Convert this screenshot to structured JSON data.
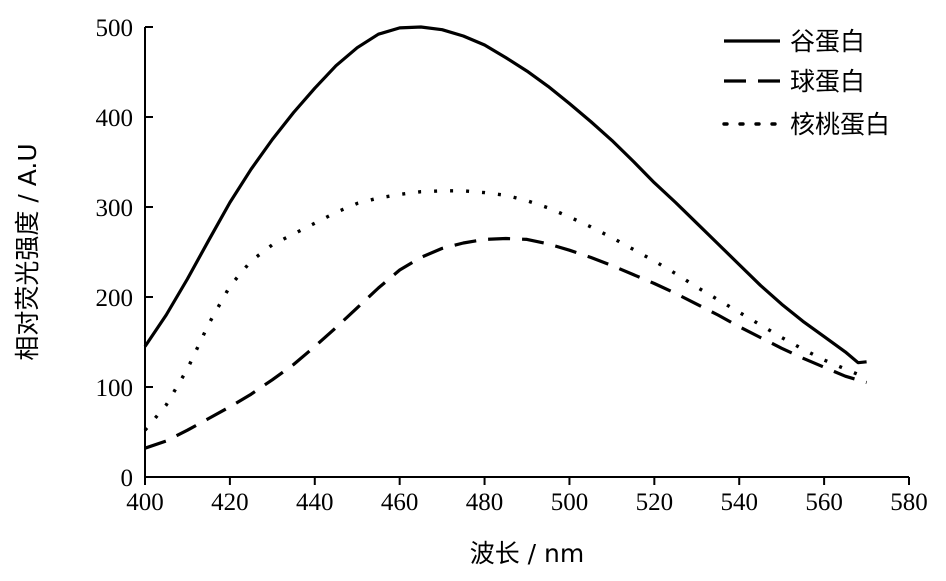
{
  "chart_data": {
    "type": "line",
    "title": "",
    "xlabel": "波长 / nm",
    "ylabel": "相对荧光强度 / A.U",
    "xlim": [
      400,
      580
    ],
    "ylim": [
      0,
      500
    ],
    "xticks": [
      400,
      420,
      440,
      460,
      480,
      500,
      520,
      540,
      560,
      580
    ],
    "yticks": [
      0,
      100,
      200,
      300,
      400,
      500
    ],
    "grid": false,
    "legend_position": "top-right",
    "series": [
      {
        "name": "谷蛋白",
        "line_style": "solid",
        "x": [
          400,
          405,
          410,
          415,
          420,
          425,
          430,
          435,
          440,
          445,
          450,
          455,
          460,
          465,
          470,
          475,
          480,
          485,
          490,
          495,
          500,
          505,
          510,
          515,
          520,
          525,
          530,
          535,
          540,
          545,
          550,
          555,
          560,
          565,
          568,
          570
        ],
        "y": [
          145,
          180,
          220,
          263,
          305,
          342,
          375,
          405,
          432,
          457,
          477,
          492,
          499,
          500,
          497,
          490,
          480,
          466,
          451,
          434,
          415,
          395,
          374,
          351,
          327,
          305,
          282,
          259,
          236,
          213,
          192,
          173,
          156,
          139,
          127,
          128
        ]
      },
      {
        "name": "球蛋白",
        "line_style": "dashed",
        "x": [
          400,
          405,
          410,
          415,
          420,
          425,
          430,
          435,
          440,
          445,
          450,
          455,
          460,
          465,
          470,
          475,
          480,
          485,
          490,
          495,
          500,
          505,
          510,
          515,
          520,
          525,
          530,
          535,
          540,
          545,
          550,
          555,
          560,
          565,
          570
        ],
        "y": [
          32,
          40,
          52,
          65,
          78,
          92,
          108,
          125,
          145,
          166,
          188,
          210,
          230,
          244,
          254,
          260,
          264,
          265,
          264,
          259,
          252,
          244,
          235,
          225,
          215,
          204,
          192,
          180,
          167,
          155,
          143,
          132,
          122,
          112,
          105
        ]
      },
      {
        "name": "核桃蛋白",
        "line_style": "dotted",
        "x": [
          400,
          405,
          410,
          415,
          420,
          425,
          430,
          435,
          440,
          445,
          450,
          455,
          460,
          465,
          470,
          475,
          480,
          485,
          490,
          495,
          500,
          505,
          510,
          515,
          520,
          525,
          530,
          535,
          540,
          545,
          550,
          555,
          560,
          565,
          570
        ],
        "y": [
          52,
          80,
          120,
          170,
          212,
          240,
          258,
          270,
          282,
          294,
          304,
          310,
          314,
          317,
          318,
          318,
          316,
          313,
          307,
          299,
          289,
          278,
          266,
          253,
          240,
          226,
          211,
          197,
          183,
          169,
          155,
          142,
          130,
          120,
          110
        ]
      }
    ]
  }
}
